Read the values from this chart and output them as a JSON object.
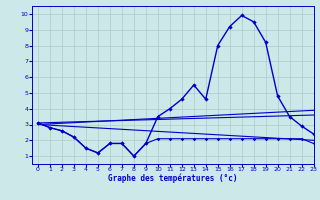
{
  "title": "Graphe des températures (°c)",
  "bg_color": "#cce8e8",
  "grid_color": "#aacccc",
  "line_color": "#0000cc",
  "xlim": [
    -0.5,
    23
  ],
  "ylim": [
    0.5,
    10.5
  ],
  "xticks": [
    0,
    1,
    2,
    3,
    4,
    5,
    6,
    7,
    8,
    9,
    10,
    11,
    12,
    13,
    14,
    15,
    16,
    17,
    18,
    19,
    20,
    21,
    22,
    23
  ],
  "yticks": [
    1,
    2,
    3,
    4,
    5,
    6,
    7,
    8,
    9,
    10
  ],
  "curve_main": {
    "x": [
      0,
      1,
      2,
      3,
      4,
      5,
      6,
      7,
      8,
      9,
      10,
      11,
      12,
      13,
      14,
      15,
      16,
      17,
      18,
      19,
      20,
      21,
      22,
      23
    ],
    "y": [
      3.1,
      2.8,
      2.6,
      2.2,
      1.5,
      1.2,
      1.8,
      1.8,
      1.0,
      1.8,
      3.5,
      4.0,
      4.6,
      5.5,
      4.6,
      8.0,
      9.2,
      9.9,
      9.5,
      8.2,
      4.8,
      3.5,
      2.9,
      2.4
    ]
  },
  "curve_min": {
    "x": [
      0,
      1,
      2,
      3,
      4,
      5,
      6,
      7,
      8,
      9,
      10,
      11,
      12,
      13,
      14,
      15,
      16,
      17,
      18,
      19,
      20,
      21,
      22,
      23
    ],
    "y": [
      3.1,
      2.8,
      2.6,
      2.2,
      1.5,
      1.2,
      1.8,
      1.8,
      1.0,
      1.8,
      2.1,
      2.1,
      2.1,
      2.1,
      2.1,
      2.1,
      2.1,
      2.1,
      2.1,
      2.1,
      2.1,
      2.1,
      2.1,
      1.8
    ]
  },
  "line1": {
    "x": [
      0,
      23
    ],
    "y": [
      3.1,
      3.6
    ]
  },
  "line2": {
    "x": [
      0,
      23
    ],
    "y": [
      3.0,
      3.9
    ]
  },
  "line3": {
    "x": [
      0,
      23
    ],
    "y": [
      3.0,
      2.0
    ]
  }
}
